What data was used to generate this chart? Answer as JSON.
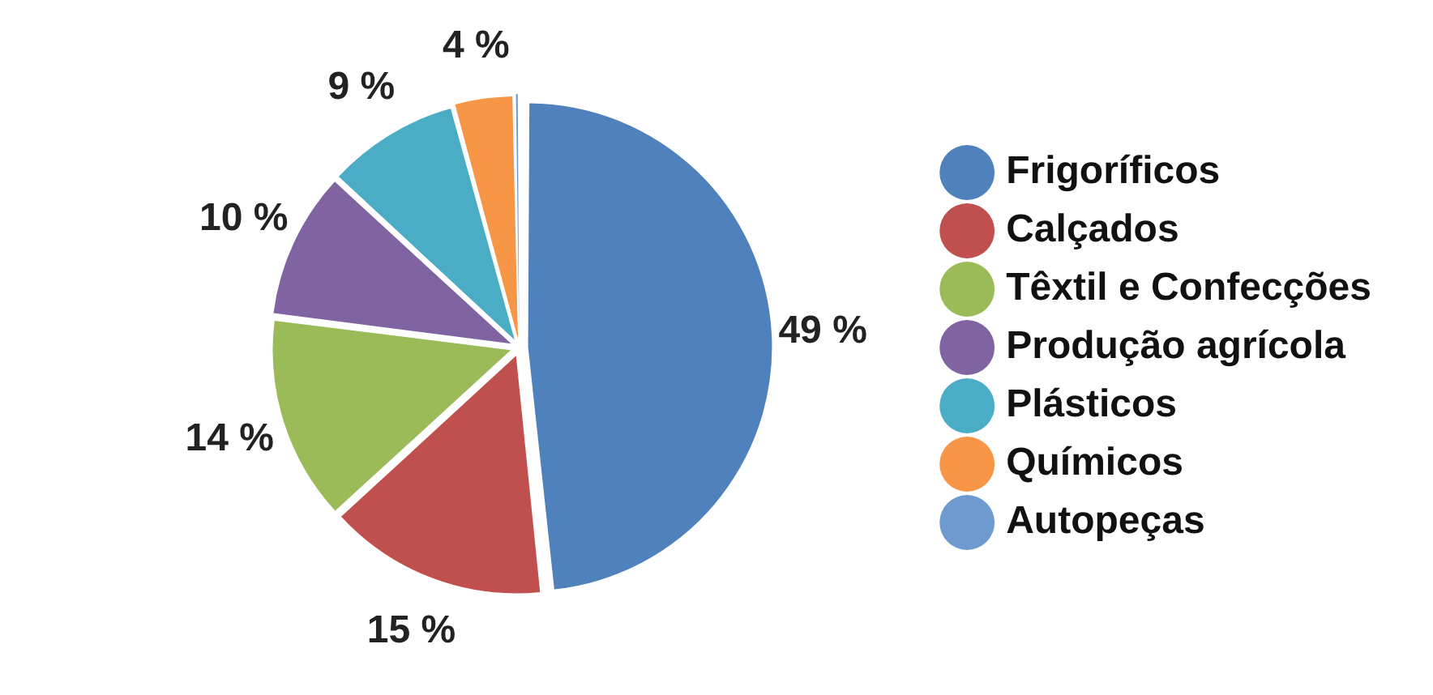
{
  "chart_data": {
    "type": "pie",
    "categories": [
      "Frigoríficos",
      "Calçados",
      "Têxtil e Confecções",
      "Produção agrícola",
      "Plásticos",
      "Químicos",
      "Autopeças"
    ],
    "values": [
      49,
      15,
      14,
      10,
      9,
      4,
      0.3
    ],
    "colors": [
      "#4f81bd",
      "#c0504d",
      "#9bbb59",
      "#8064a2",
      "#4bacc6",
      "#f79646",
      "#6f9ad0"
    ],
    "value_labels": [
      "49 %",
      "15 %",
      "14 %",
      "10 %",
      "9 %",
      "4 %",
      null
    ],
    "legend": "right"
  }
}
